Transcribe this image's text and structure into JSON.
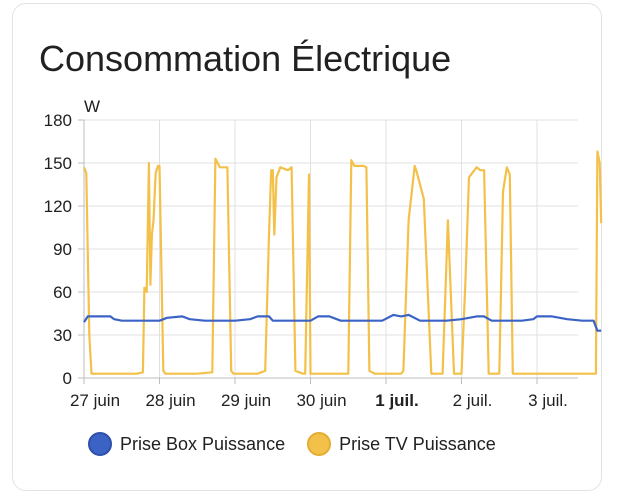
{
  "card": {
    "title": "Consommation Électrique"
  },
  "chart_data": {
    "type": "line",
    "ylabel": "W",
    "xlabel": "",
    "ylim": [
      0,
      180
    ],
    "yticks": [
      0,
      30,
      60,
      90,
      120,
      150,
      180
    ],
    "xlim": [
      0,
      6.85
    ],
    "xticks": [
      {
        "pos": 0,
        "label": "27 juin",
        "bold": false
      },
      {
        "pos": 1,
        "label": "28 juin",
        "bold": false
      },
      {
        "pos": 2,
        "label": "29 juin",
        "bold": false
      },
      {
        "pos": 3,
        "label": "30 juin",
        "bold": false
      },
      {
        "pos": 4,
        "label": "1 juil.",
        "bold": true
      },
      {
        "pos": 5,
        "label": "2 juil.",
        "bold": false
      },
      {
        "pos": 6,
        "label": "3 juil.",
        "bold": false
      }
    ],
    "grid": true,
    "legend_position": "bottom",
    "series": [
      {
        "name": "Prise Box Puissance",
        "color": "#3b63c6",
        "x": [
          0,
          0.05,
          0.1,
          0.2,
          0.35,
          0.4,
          0.5,
          0.7,
          0.8,
          1.0,
          1.1,
          1.3,
          1.4,
          1.6,
          1.75,
          1.9,
          2.0,
          2.2,
          2.3,
          2.45,
          2.5,
          2.7,
          2.9,
          3.0,
          3.1,
          3.25,
          3.4,
          3.6,
          3.8,
          3.95,
          4.1,
          4.2,
          4.3,
          4.45,
          4.6,
          4.8,
          5.0,
          5.2,
          5.3,
          5.4,
          5.6,
          5.8,
          5.95,
          6.0,
          6.2,
          6.4,
          6.6,
          6.75,
          6.8,
          6.85
        ],
        "y": [
          39,
          43,
          43,
          43,
          43,
          41,
          40,
          40,
          40,
          40,
          42,
          43,
          41,
          40,
          40,
          40,
          40,
          41,
          43,
          43,
          40,
          40,
          40,
          40,
          43,
          43,
          40,
          40,
          40,
          40,
          44,
          43,
          44,
          40,
          40,
          40,
          41,
          43,
          43,
          40,
          40,
          40,
          41,
          43,
          43,
          41,
          40,
          40,
          33,
          33
        ]
      },
      {
        "name": "Prise TV Puissance",
        "color": "#f3c14a",
        "x": [
          0,
          0.03,
          0.07,
          0.1,
          0.12,
          0.3,
          0.5,
          0.7,
          0.78,
          0.8,
          0.83,
          0.86,
          0.88,
          0.9,
          0.92,
          0.95,
          0.98,
          1.0,
          1.05,
          1.08,
          1.1,
          1.2,
          1.5,
          1.7,
          1.74,
          1.8,
          1.83,
          1.9,
          1.95,
          1.98,
          2.0,
          2.1,
          2.3,
          2.4,
          2.45,
          2.48,
          2.5,
          2.52,
          2.55,
          2.6,
          2.7,
          2.75,
          2.8,
          2.9,
          2.93,
          2.98,
          3.0,
          3.1,
          3.3,
          3.5,
          3.54,
          3.58,
          3.7,
          3.74,
          3.78,
          3.85,
          4.0,
          4.2,
          4.23,
          4.3,
          4.38,
          4.4,
          4.5,
          4.6,
          4.65,
          4.75,
          4.82,
          4.9,
          5.0,
          5.05,
          5.1,
          5.2,
          5.25,
          5.3,
          5.36,
          5.4,
          5.5,
          5.55,
          5.6,
          5.64,
          5.68,
          5.7,
          5.75,
          6.0,
          6.3,
          6.5,
          6.7,
          6.78,
          6.8,
          6.83,
          6.85
        ],
        "y": [
          147,
          143,
          30,
          3,
          3,
          3,
          3,
          3,
          4,
          63,
          60,
          150,
          65,
          100,
          110,
          143,
          148,
          148,
          5,
          3,
          3,
          3,
          3,
          4,
          153,
          147,
          147,
          147,
          5,
          3,
          3,
          3,
          3,
          5,
          100,
          145,
          145,
          100,
          140,
          147,
          145,
          147,
          5,
          3,
          3,
          142,
          3,
          3,
          3,
          3,
          152,
          148,
          148,
          147,
          5,
          3,
          3,
          3,
          5,
          110,
          148,
          145,
          125,
          3,
          3,
          3,
          110,
          3,
          3,
          65,
          140,
          147,
          145,
          145,
          3,
          3,
          3,
          130,
          147,
          142,
          3,
          3,
          3,
          3,
          3,
          3,
          3,
          3,
          158,
          150,
          108
        ]
      }
    ]
  }
}
